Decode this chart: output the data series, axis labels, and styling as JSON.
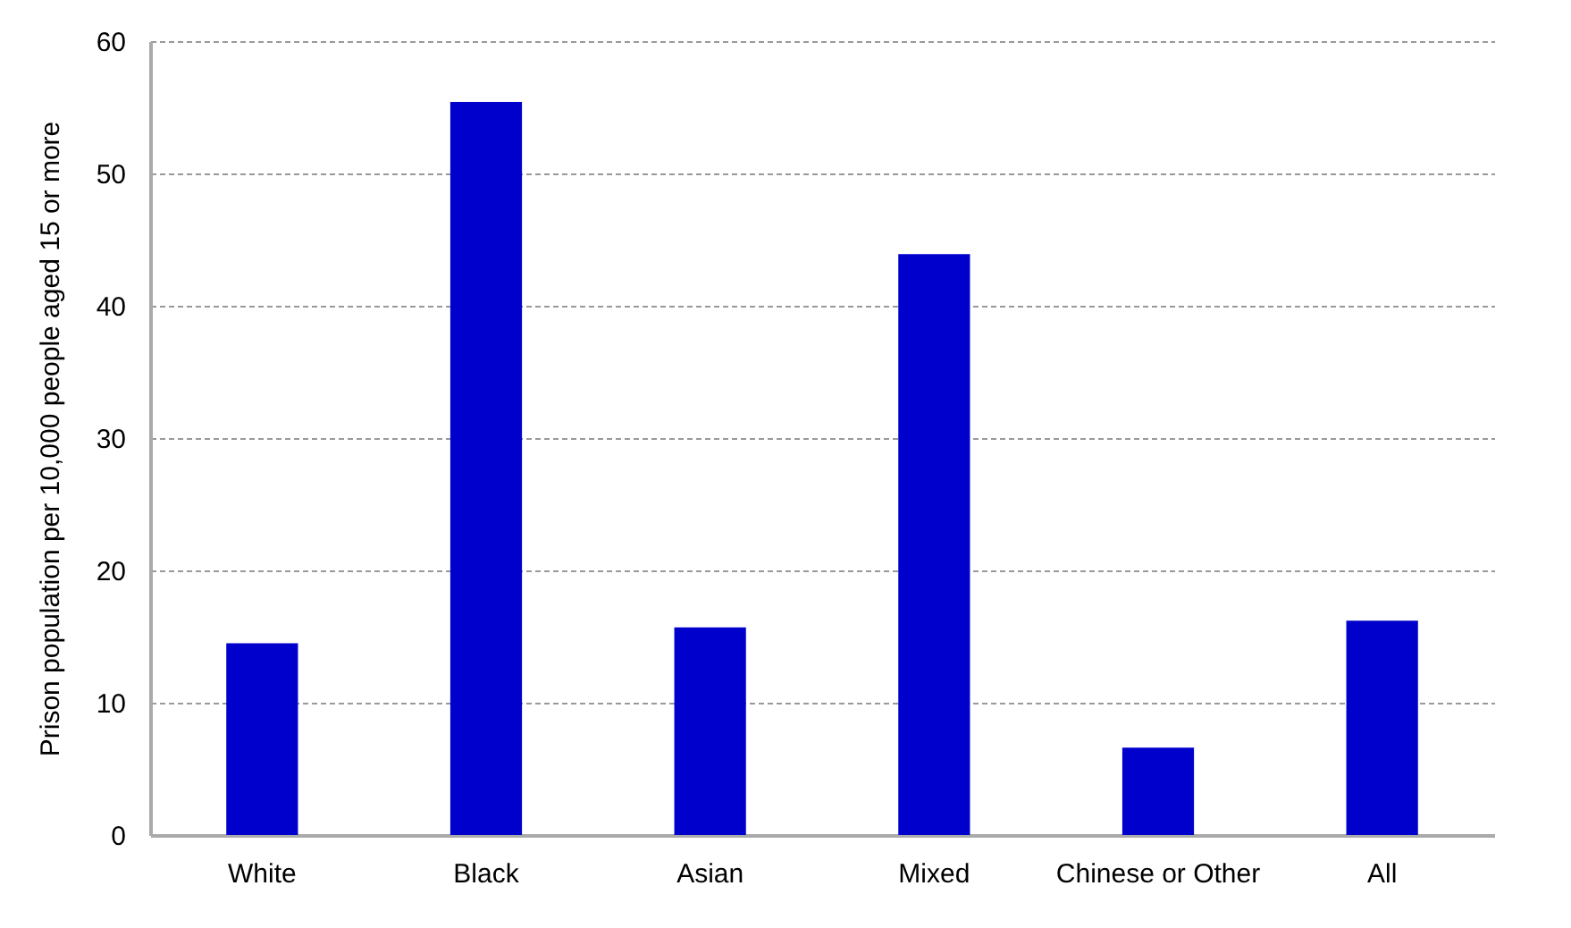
{
  "chart_data": {
    "type": "bar",
    "ylabel": "Prison population per 10,000 people aged 15 or more",
    "categories": [
      "White",
      "Black",
      "Asian",
      "Mixed",
      "Chinese or Other",
      "All"
    ],
    "values": [
      14.5,
      55.4,
      15.7,
      43.9,
      6.6,
      16.2
    ],
    "color": "#0000cc",
    "ylim": [
      0,
      60
    ],
    "yticks": [
      0,
      10,
      20,
      30,
      40,
      50,
      60
    ],
    "grid": "y"
  }
}
